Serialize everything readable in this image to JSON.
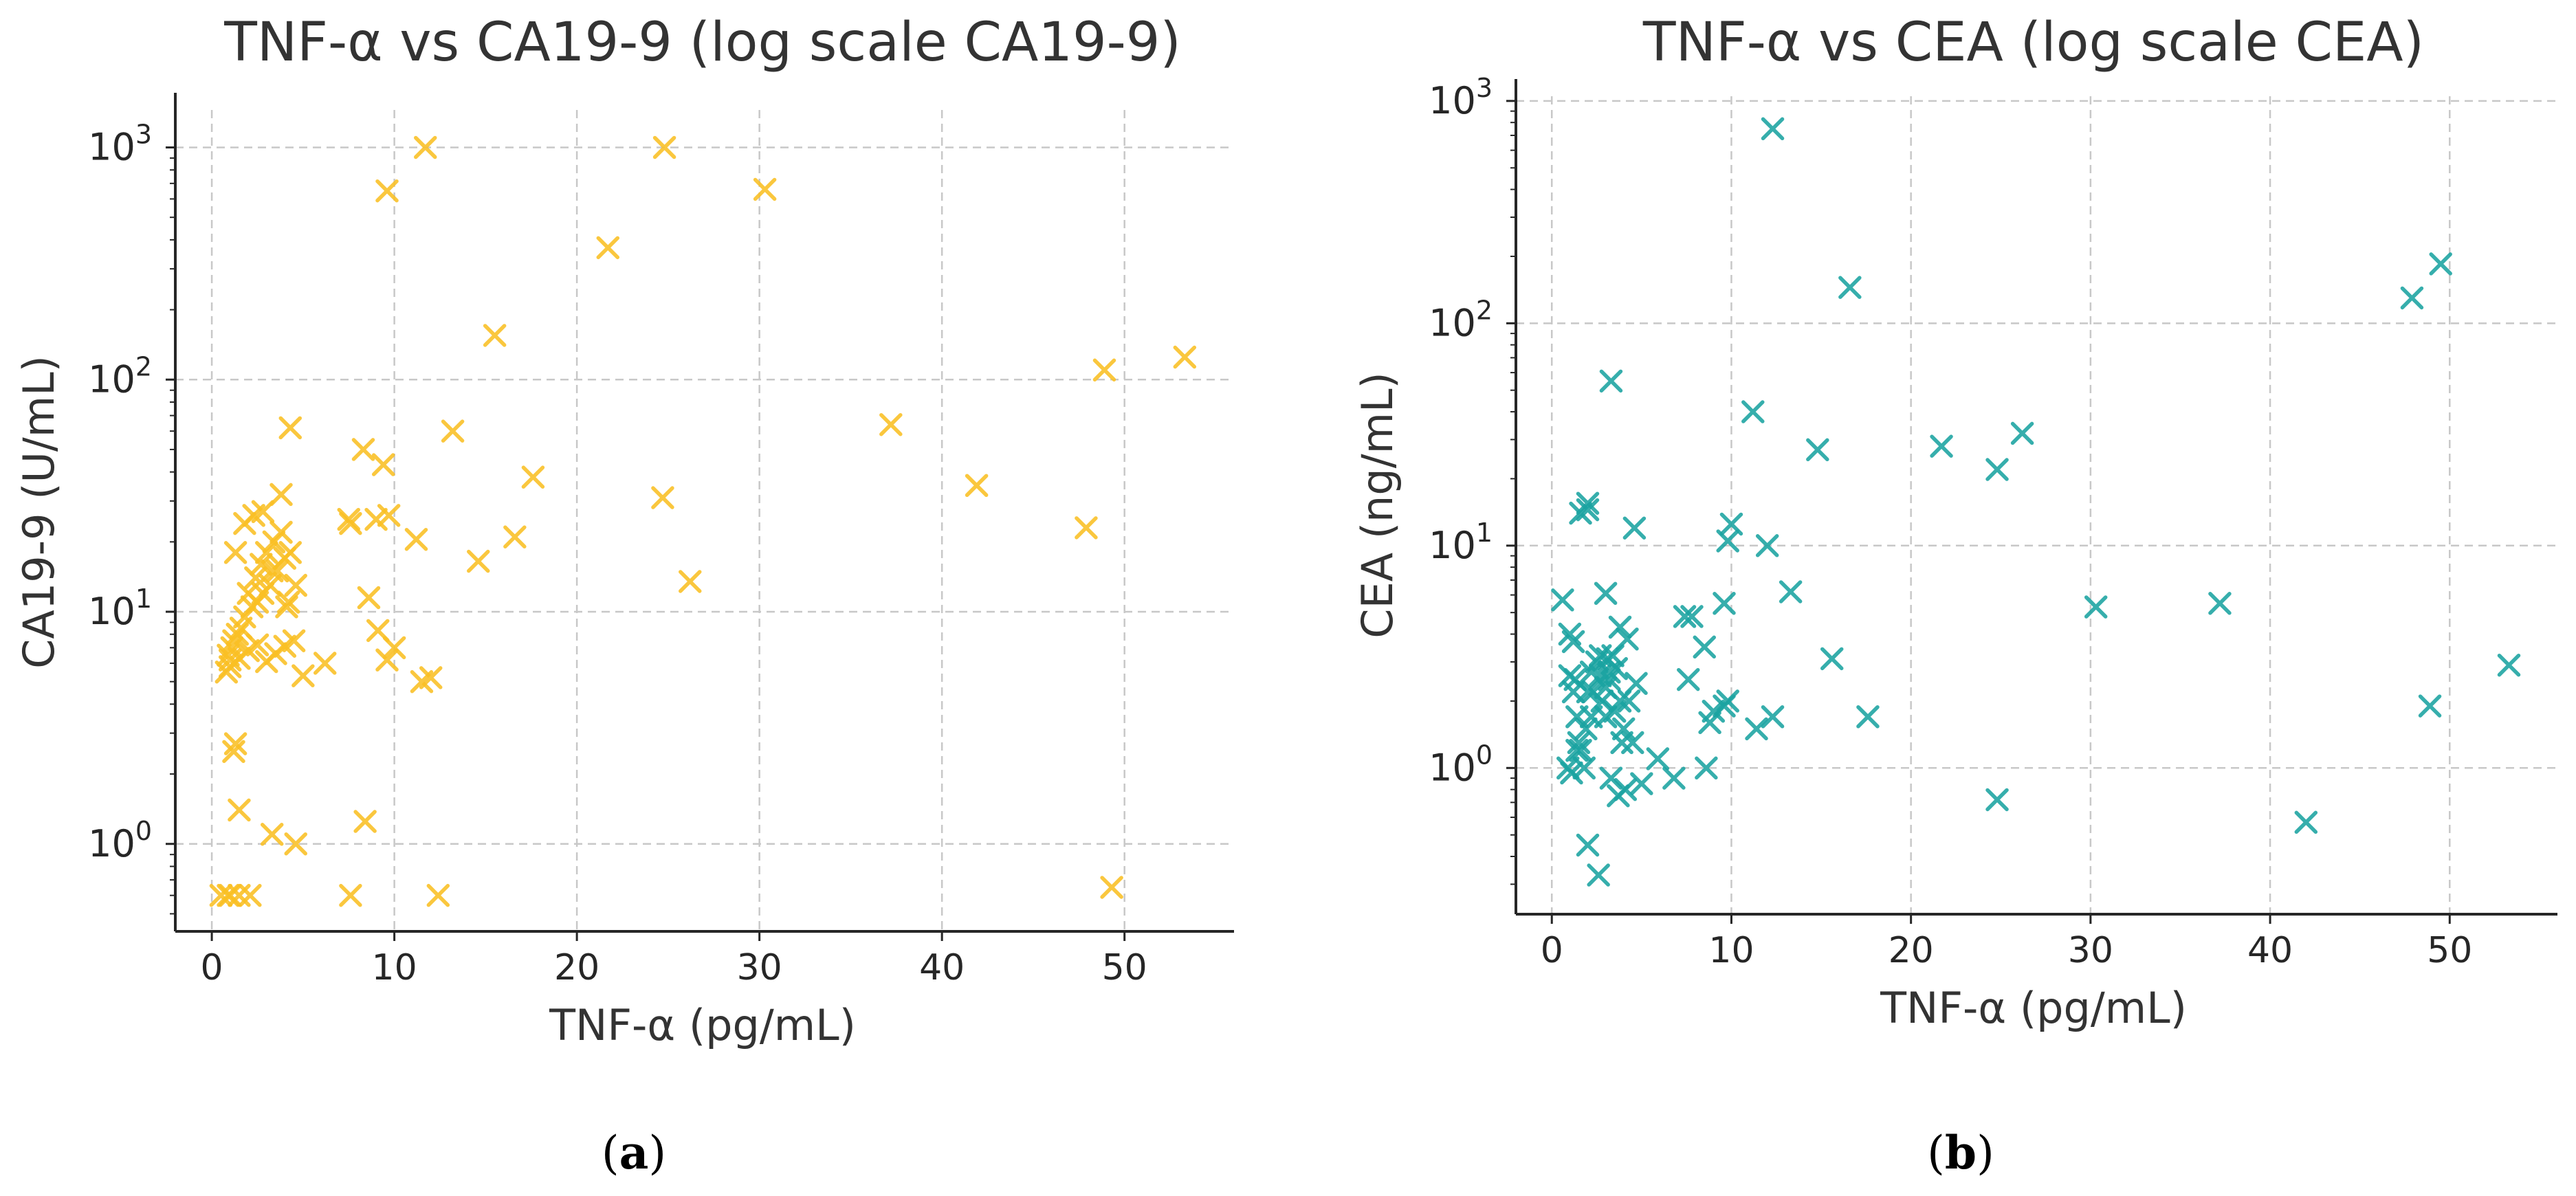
{
  "figure": {
    "panel_labels": [
      {
        "open": "(",
        "letter": "a",
        "close": ")"
      },
      {
        "open": "(",
        "letter": "b",
        "close": ")"
      }
    ]
  },
  "chart_data": [
    {
      "type": "scatter",
      "title": "TNF-α vs CA19-9 (log scale CA19-9)",
      "xlabel": "TNF-α (pg/mL)",
      "ylabel": "CA19-9 (U/mL)",
      "yscale": "log",
      "xlim": [
        -2,
        56
      ],
      "ylim": [
        0.42,
        1450
      ],
      "xticks": [
        0,
        10,
        20,
        30,
        40,
        50
      ],
      "yticks": [
        {
          "value": 1,
          "base": "10",
          "exp": "0"
        },
        {
          "value": 10,
          "base": "10",
          "exp": "1"
        },
        {
          "value": 100,
          "base": "10",
          "exp": "2"
        },
        {
          "value": 1000,
          "base": "10",
          "exp": "3"
        }
      ],
      "grid": true,
      "marker": "x",
      "color": "#F9BF23",
      "series": [
        {
          "name": "CA19-9",
          "x": [
            0.5,
            0.9,
            1.0,
            1.2,
            1.3,
            1.5,
            2.1,
            0.8,
            1.0,
            1.1,
            1.4,
            1.8,
            2.2,
            2.5,
            2.8,
            3.2,
            3.6,
            4.0,
            4.3,
            0.9,
            1.2,
            1.6,
            2.0,
            2.4,
            2.7,
            3.0,
            3.4,
            3.8,
            4.2,
            4.6,
            1.0,
            1.5,
            2.0,
            2.5,
            3.0,
            3.5,
            4.0,
            4.5,
            5.0,
            6.2,
            1.3,
            1.8,
            2.3,
            2.8,
            3.3,
            3.8,
            4.3,
            7.5,
            7.6,
            8.6,
            9.1,
            9.6,
            10.0,
            11.2,
            11.5,
            12.0,
            8.3,
            9.4,
            9.0,
            9.7,
            9.6,
            13.2,
            14.6,
            16.6,
            17.6,
            15.5,
            11.7,
            21.7,
            24.8,
            30.3,
            24.7,
            26.2,
            37.2,
            41.9,
            47.9,
            48.9,
            53.3,
            49.3,
            7.6,
            8.4,
            12.4,
            3.3,
            4.6,
            1.5,
            4.1
          ],
          "y": [
            0.6,
            0.6,
            0.6,
            2.5,
            2.7,
            0.6,
            0.6,
            5.5,
            6.2,
            7.0,
            8.0,
            9.5,
            10.5,
            11.0,
            12.0,
            13.0,
            15.0,
            17.0,
            18.0,
            6.5,
            7.5,
            8.5,
            12.0,
            14.0,
            16.0,
            18.0,
            20.0,
            22.0,
            11.0,
            13.0,
            5.8,
            6.3,
            6.8,
            7.2,
            6.1,
            6.6,
            7.1,
            7.5,
            5.3,
            6.0,
            18.0,
            24.0,
            26.0,
            27.0,
            15.0,
            32.0,
            62.0,
            25.0,
            24.0,
            11.5,
            8.3,
            6.2,
            7.0,
            20.5,
            5.0,
            5.2,
            50.0,
            43.0,
            25.0,
            26.0,
            650.0,
            60.0,
            16.5,
            21.0,
            38.0,
            155.0,
            1000.0,
            370.0,
            1000.0,
            660.0,
            31.0,
            13.5,
            64.0,
            35.0,
            23.0,
            110.0,
            125.0,
            0.65,
            0.6,
            1.25,
            0.6,
            1.1,
            1.0,
            1.4,
            10.5
          ]
        }
      ]
    },
    {
      "type": "scatter",
      "title": "TNF-α vs CEA (log scale CEA)",
      "xlabel": "TNF-α (pg/mL)",
      "ylabel": "CEA (ng/mL)",
      "yscale": "log",
      "xlim": [
        -2,
        56
      ],
      "ylim": [
        0.22,
        1050
      ],
      "xticks": [
        0,
        10,
        20,
        30,
        40,
        50
      ],
      "yticks": [
        {
          "value": 1,
          "base": "10",
          "exp": "0"
        },
        {
          "value": 10,
          "base": "10",
          "exp": "1"
        },
        {
          "value": 100,
          "base": "10",
          "exp": "2"
        },
        {
          "value": 1000,
          "base": "10",
          "exp": "3"
        }
      ],
      "grid": true,
      "marker": "x",
      "color": "#1AA3A1",
      "series": [
        {
          "name": "CEA",
          "x": [
            0.6,
            1.0,
            1.2,
            1.3,
            1.4,
            1.6,
            1.8,
            2.0,
            2.2,
            2.5,
            2.8,
            3.0,
            3.2,
            3.4,
            3.6,
            3.8,
            4.0,
            4.2,
            4.5,
            1.1,
            1.5,
            1.9,
            2.3,
            2.7,
            3.1,
            3.5,
            3.9,
            4.3,
            4.7,
            1.0,
            1.4,
            2.0,
            2.6,
            3.3,
            3.7,
            4.1,
            5.0,
            5.9,
            6.8,
            7.6,
            7.8,
            8.5,
            8.8,
            9.0,
            9.6,
            9.8,
            8.6,
            2.0,
            2.7,
            3.0,
            3.2,
            12.3,
            16.6,
            3.3,
            11.2,
            1.6,
            2.0,
            4.6,
            9.8,
            10.0,
            12.0,
            9.6,
            14.8,
            13.3,
            15.6,
            11.4,
            12.3,
            17.6,
            21.7,
            24.8,
            26.2,
            30.3,
            37.2,
            24.8,
            42.0,
            47.9,
            48.9,
            49.5,
            53.3,
            1.2,
            2.2,
            3.0,
            3.8,
            0.9,
            7.4
          ],
          "y": [
            5.7,
            4.0,
            3.7,
            2.5,
            1.7,
            1.2,
            1.0,
            2.2,
            2.7,
            3.0,
            2.0,
            1.7,
            2.5,
            3.2,
            2.8,
            2.0,
            1.5,
            3.8,
            1.3,
            0.95,
            1.3,
            1.5,
            2.2,
            2.6,
            3.1,
            1.8,
            1.3,
            2.0,
            2.4,
            2.6,
            1.2,
            0.45,
            0.33,
            0.9,
            0.75,
            0.8,
            0.85,
            1.1,
            0.9,
            2.5,
            4.8,
            3.5,
            1.6,
            1.8,
            1.9,
            2.0,
            1.0,
            14.5,
            3.2,
            6.1,
            2.7,
            750.0,
            145.0,
            55.0,
            40.0,
            14.0,
            15.5,
            12.0,
            10.5,
            12.5,
            10.0,
            5.5,
            27.0,
            6.2,
            3.1,
            1.5,
            1.7,
            1.7,
            28.0,
            22.0,
            32.0,
            5.3,
            5.5,
            0.72,
            0.57,
            130.0,
            1.9,
            185.0,
            2.9,
            2.2,
            1.7,
            2.3,
            4.3,
            1.0,
            4.8
          ]
        }
      ]
    }
  ]
}
